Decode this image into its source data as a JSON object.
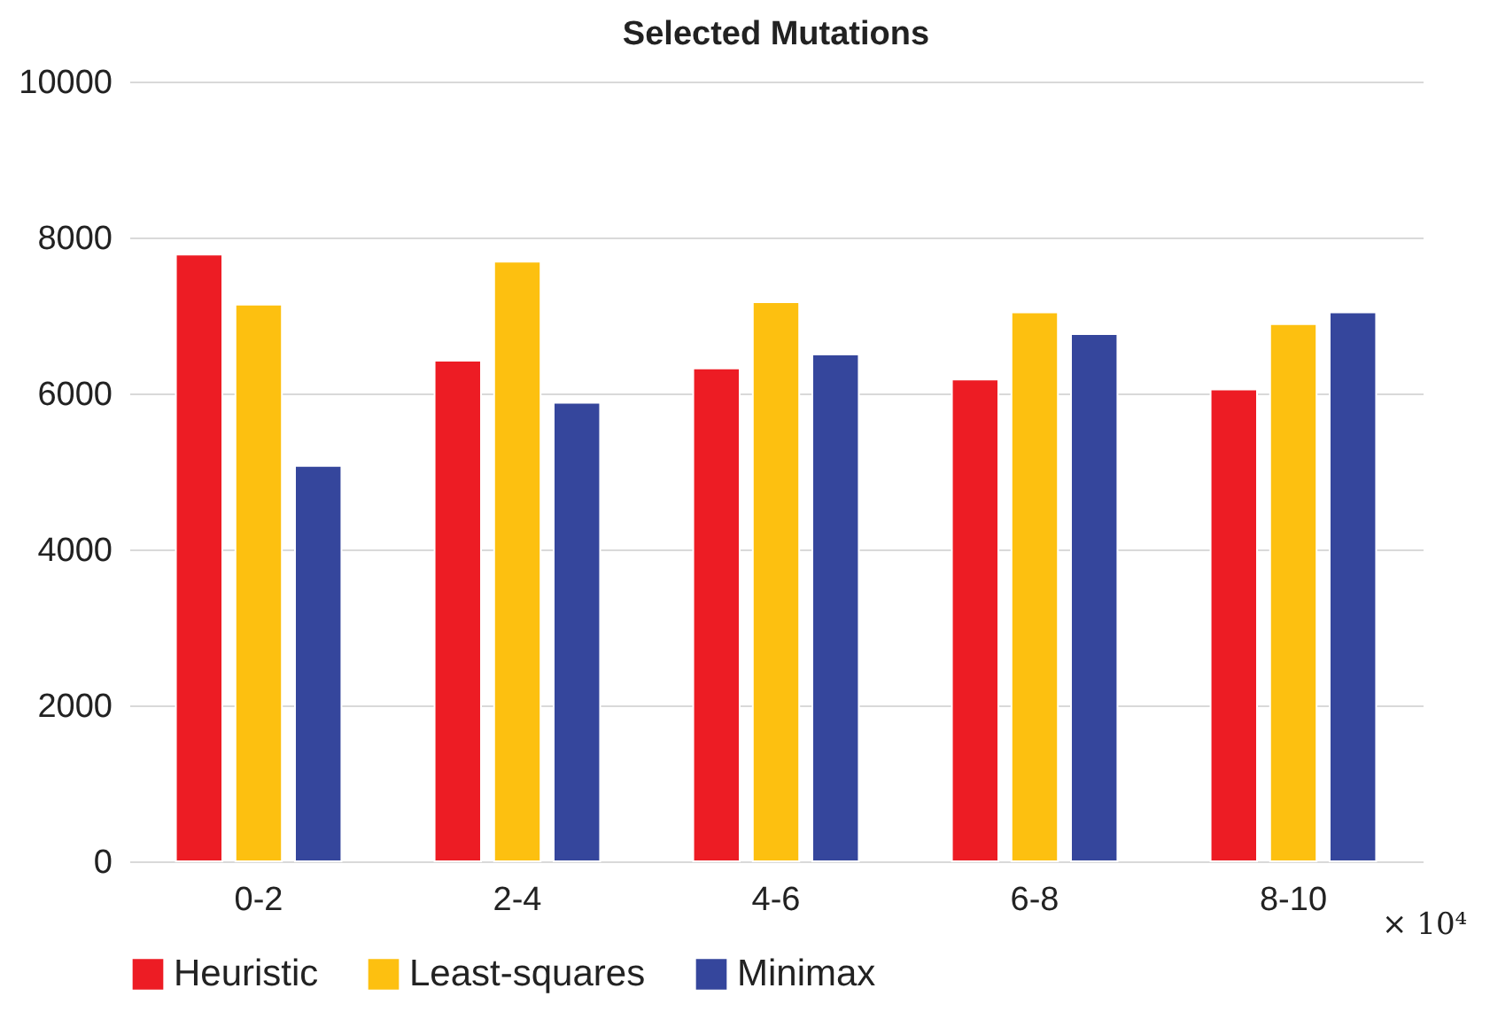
{
  "chart_data": {
    "type": "bar",
    "title": "Selected Mutations",
    "categories": [
      "0-2",
      "2-4",
      "4-6",
      "6-8",
      "8-10"
    ],
    "series": [
      {
        "name": "Heuristic",
        "color": "#ed1c24",
        "values": [
          7780,
          6420,
          6320,
          6180,
          6050
        ]
      },
      {
        "name": "Least-squares",
        "color": "#fdc010",
        "values": [
          7140,
          7690,
          7170,
          7040,
          6890
        ]
      },
      {
        "name": "Minimax",
        "color": "#35469c",
        "values": [
          5070,
          5880,
          6500,
          6760,
          7040
        ]
      }
    ],
    "ylim": [
      0,
      10000
    ],
    "yticks": [
      0,
      2000,
      4000,
      6000,
      8000,
      10000
    ],
    "grid": "y",
    "legend": "bottom",
    "annotations": [
      "× 10⁴"
    ]
  }
}
